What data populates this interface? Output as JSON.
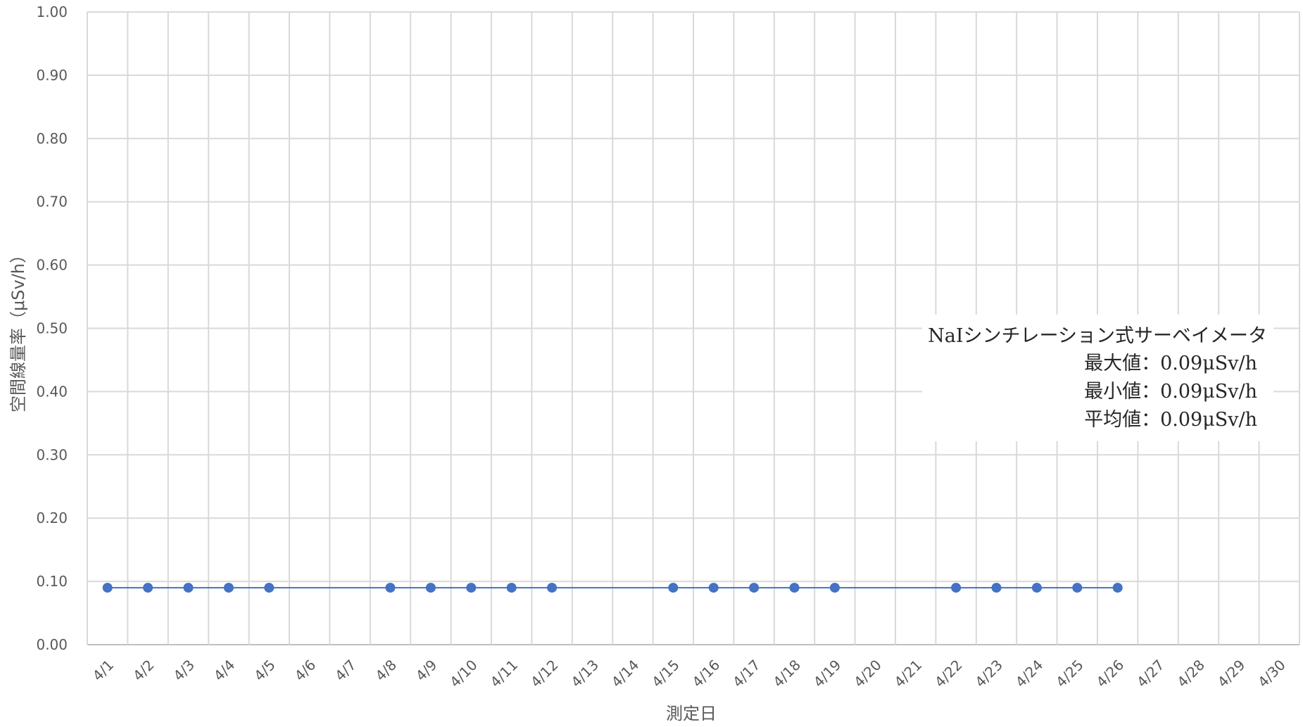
{
  "chart_data": {
    "type": "line",
    "xlabel": "測定日",
    "ylabel": "空間線量率（μSv/h）",
    "ylim": [
      0,
      1
    ],
    "grid": true,
    "categories": [
      "4/1",
      "4/2",
      "4/3",
      "4/4",
      "4/5",
      "4/6",
      "4/7",
      "4/8",
      "4/9",
      "4/10",
      "4/11",
      "4/12",
      "4/13",
      "4/14",
      "4/15",
      "4/16",
      "4/17",
      "4/18",
      "4/19",
      "4/20",
      "4/21",
      "4/22",
      "4/23",
      "4/24",
      "4/25",
      "4/26",
      "4/27",
      "4/28",
      "4/29",
      "4/30"
    ],
    "y_ticks": [
      "0.00",
      "0.10",
      "0.20",
      "0.30",
      "0.40",
      "0.50",
      "0.60",
      "0.70",
      "0.80",
      "0.90",
      "1.00"
    ],
    "series": [
      {
        "x": [
          "4/1",
          "4/2",
          "4/3",
          "4/4",
          "4/5",
          "4/8",
          "4/9",
          "4/10",
          "4/11",
          "4/12",
          "4/15",
          "4/16",
          "4/17",
          "4/18",
          "4/19",
          "4/22",
          "4/23",
          "4/24",
          "4/25",
          "4/26"
        ],
        "values": [
          0.09,
          0.09,
          0.09,
          0.09,
          0.09,
          0.09,
          0.09,
          0.09,
          0.09,
          0.09,
          0.09,
          0.09,
          0.09,
          0.09,
          0.09,
          0.09,
          0.09,
          0.09,
          0.09,
          0.09
        ],
        "color": "#4472c4"
      }
    ],
    "annotation": {
      "instrument": "NaIシンチレーション式サーベイメータ",
      "max": "最大値：0.09μSv/h",
      "min": "最小値：0.09μSv/h",
      "avg": "平均値：0.09μSv/h"
    }
  }
}
